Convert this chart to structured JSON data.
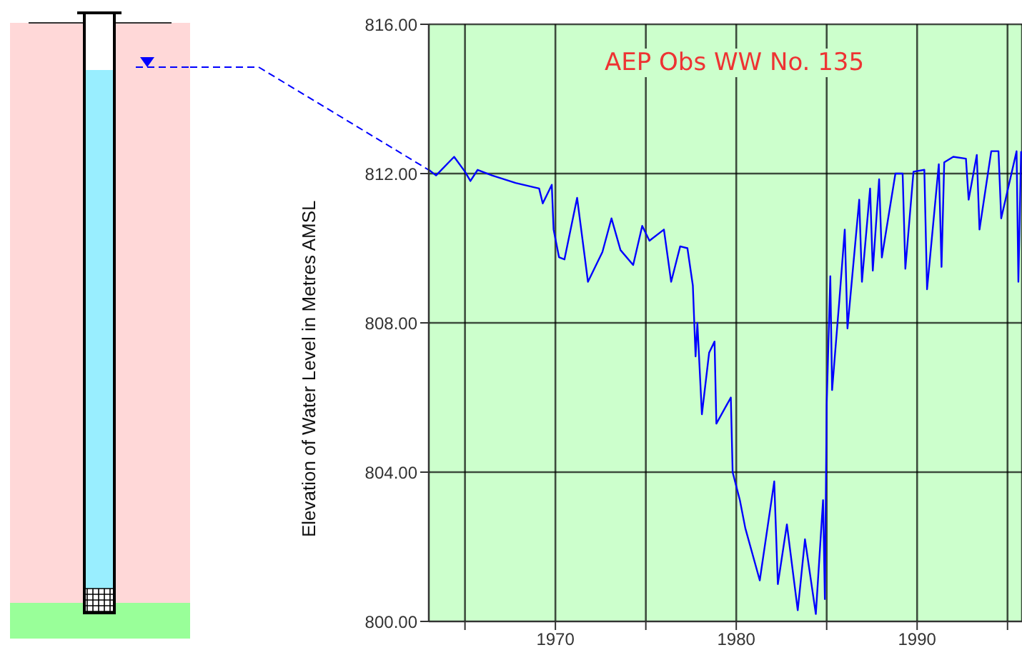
{
  "chart_data": {
    "type": "line",
    "title": "AEP Obs WW No. 135",
    "ylabel": "Elevation of Water Level in Metres AMSL",
    "x": [
      1963.0,
      1963.4,
      1964.4,
      1965.0,
      1965.3,
      1965.7,
      1966.5,
      1967.8,
      1969.1,
      1969.3,
      1969.8,
      1969.9,
      1970.2,
      1970.5,
      1971.2,
      1971.8,
      1972.6,
      1973.1,
      1973.6,
      1974.3,
      1974.8,
      1975.2,
      1976.0,
      1976.4,
      1976.9,
      1977.3,
      1977.6,
      1977.75,
      1977.85,
      1978.1,
      1978.5,
      1978.8,
      1978.9,
      1979.7,
      1979.8,
      1980.2,
      1980.5,
      1981.3,
      1982.1,
      1982.3,
      1982.8,
      1983.4,
      1983.8,
      1984.4,
      1984.8,
      1984.9,
      1985.0,
      1985.2,
      1985.3,
      1985.7,
      1986.0,
      1986.15,
      1986.8,
      1986.95,
      1987.4,
      1987.55,
      1987.9,
      1988.05,
      1988.8,
      1989.2,
      1989.35,
      1989.8,
      1990.4,
      1990.55,
      1991.2,
      1991.35,
      1991.5,
      1992.0,
      1992.7,
      1992.85,
      1993.3,
      1993.45,
      1994.1,
      1994.5,
      1994.65,
      1995.5,
      1995.6,
      1995.75
    ],
    "series": [
      {
        "color": "#0000ff",
        "values": [
          812.1,
          811.95,
          812.45,
          812.05,
          811.8,
          812.1,
          811.95,
          811.75,
          811.6,
          811.2,
          811.7,
          810.5,
          809.76,
          809.7,
          811.35,
          809.1,
          809.9,
          810.8,
          809.95,
          809.55,
          810.6,
          810.2,
          810.5,
          809.1,
          810.05,
          810.0,
          809.0,
          807.1,
          808.0,
          805.55,
          807.2,
          807.5,
          805.3,
          806.0,
          804.0,
          803.25,
          802.5,
          801.1,
          803.75,
          801.0,
          802.6,
          800.3,
          802.2,
          800.2,
          803.25,
          800.6,
          805.8,
          809.25,
          806.2,
          808.6,
          810.5,
          807.85,
          811.3,
          809.1,
          811.6,
          809.4,
          811.85,
          809.75,
          812.0,
          812.0,
          809.45,
          812.05,
          812.1,
          808.9,
          812.25,
          809.5,
          812.3,
          812.45,
          812.4,
          811.3,
          812.5,
          810.5,
          812.6,
          812.6,
          810.8,
          812.6,
          809.1,
          812.6
        ]
      }
    ],
    "xlim": [
      1963,
      1995.8
    ],
    "xticks": [
      {
        "value": 1965,
        "label": null
      },
      1970,
      {
        "value": 1975,
        "label": null
      },
      1980,
      {
        "value": 1985,
        "label": null
      },
      1990,
      {
        "value": 1995,
        "label": null
      }
    ],
    "ylim": [
      800,
      816
    ],
    "yticks": [
      {
        "value": 800,
        "label": "800.00"
      },
      {
        "value": 804,
        "label": "804.00"
      },
      {
        "value": 808,
        "label": "808.00"
      },
      {
        "value": 812,
        "label": "812.00"
      },
      {
        "value": 816,
        "label": "816.00"
      }
    ],
    "grid": true,
    "legend": false,
    "marker": "none",
    "line_style": "solid"
  }
}
